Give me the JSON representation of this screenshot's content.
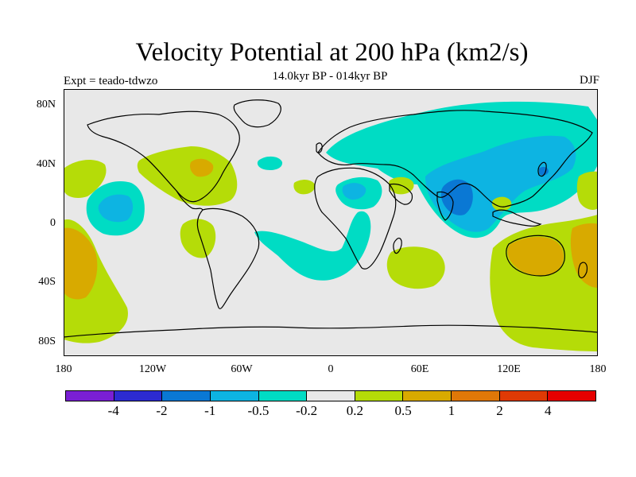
{
  "header": {
    "title": "Velocity Potential at 200 hPa (km2/s)",
    "subtitle": "14.0kyr BP - 014kyr BP",
    "experiment": "Expt = teado-tdwzo",
    "season": "DJF"
  },
  "axes": {
    "lat_labels": [
      "80N",
      "40N",
      "0",
      "40S",
      "80S"
    ],
    "lon_labels": [
      "180",
      "120W",
      "60W",
      "0",
      "60E",
      "120E",
      "180"
    ]
  },
  "colorbar": {
    "colors": [
      "#7a1fd4",
      "#2c2bd1",
      "#0a78d4",
      "#0db4e2",
      "#00dcc4",
      "#e8e8e8",
      "#b5dc08",
      "#d8aa00",
      "#e07808",
      "#df3a05",
      "#e60000"
    ],
    "labels": [
      "-4",
      "-2",
      "-1",
      "-0.5",
      "-0.2",
      "0.2",
      "0.5",
      "1",
      "2",
      "4"
    ]
  },
  "map": {
    "background": "#e8e8e8",
    "colors": {
      "teal": "#00dcc4",
      "cyan": "#0db4e2",
      "blue": "#0a78d4",
      "lime": "#b5dc08",
      "gold": "#d8aa00",
      "orange": "#e07808"
    }
  }
}
